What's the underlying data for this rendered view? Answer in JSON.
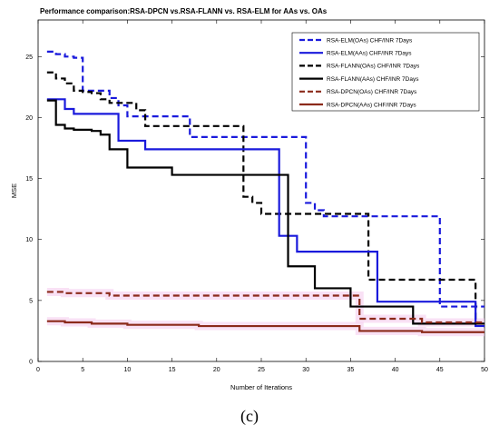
{
  "chart_data": {
    "type": "line",
    "title": "Performance comparison:RSA-DPCN vs.RSA-FLANN vs. RSA-ELM for AAs vs. OAs",
    "xlabel": "Number of Iterations",
    "ylabel": "MSE",
    "xlim": [
      0,
      50
    ],
    "ylim": [
      0,
      28
    ],
    "xticks": [
      0,
      5,
      10,
      15,
      20,
      25,
      30,
      35,
      40,
      45,
      50
    ],
    "yticks": [
      0,
      5,
      10,
      15,
      20,
      25
    ],
    "grid": false,
    "legend_position": "top-right",
    "caption": "(c)",
    "series": [
      {
        "name": "RSA-ELM(OAs) CHF/INR 7Days",
        "color": "#1a1adc",
        "style": "dashed",
        "x": [
          1,
          2,
          3,
          4,
          5,
          6,
          7,
          8,
          9,
          10,
          11,
          12,
          13,
          14,
          15,
          16,
          17,
          18,
          19,
          20,
          21,
          22,
          23,
          24,
          25,
          26,
          27,
          28,
          29,
          30,
          31,
          32,
          33,
          34,
          35,
          36,
          37,
          38,
          39,
          40,
          41,
          42,
          43,
          44,
          45,
          46,
          47,
          48,
          49,
          50
        ],
        "values": [
          25.4,
          25.2,
          25.0,
          24.9,
          22.2,
          22.2,
          22.2,
          21.6,
          21.0,
          20.1,
          20.1,
          20.1,
          20.1,
          20.1,
          20.1,
          20.1,
          18.4,
          18.4,
          18.4,
          18.4,
          18.4,
          18.4,
          18.4,
          18.4,
          18.4,
          18.4,
          18.4,
          18.4,
          18.4,
          13.0,
          12.4,
          11.9,
          11.9,
          11.9,
          11.9,
          11.9,
          11.9,
          11.9,
          11.9,
          11.9,
          11.9,
          11.9,
          11.9,
          11.9,
          4.5,
          4.5,
          4.5,
          4.5,
          4.5,
          4.5
        ]
      },
      {
        "name": "RSA-ELM(AAs) CHF/INR 7Days",
        "color": "#1a1adc",
        "style": "solid",
        "x": [
          1,
          2,
          3,
          4,
          5,
          6,
          7,
          8,
          9,
          10,
          11,
          12,
          13,
          14,
          15,
          16,
          17,
          18,
          19,
          20,
          21,
          22,
          23,
          24,
          25,
          26,
          27,
          28,
          29,
          30,
          31,
          32,
          33,
          34,
          35,
          36,
          37,
          38,
          39,
          40,
          41,
          42,
          43,
          44,
          45,
          46,
          47,
          48,
          49,
          50
        ],
        "values": [
          21.5,
          21.5,
          20.7,
          20.3,
          20.3,
          20.3,
          20.3,
          20.3,
          18.1,
          18.1,
          18.1,
          17.4,
          17.4,
          17.4,
          17.4,
          17.4,
          17.4,
          17.4,
          17.4,
          17.4,
          17.4,
          17.4,
          17.4,
          17.4,
          17.4,
          17.4,
          10.3,
          10.3,
          9.0,
          9.0,
          9.0,
          9.0,
          9.0,
          9.0,
          9.0,
          9.0,
          9.0,
          4.9,
          4.9,
          4.9,
          4.9,
          4.9,
          4.9,
          4.9,
          4.9,
          4.9,
          4.9,
          4.9,
          2.9,
          2.9
        ]
      },
      {
        "name": "RSA-FLANN(OAs) CHF/INR 7Days",
        "color": "#000000",
        "style": "dashed",
        "x": [
          1,
          2,
          3,
          4,
          5,
          6,
          7,
          8,
          9,
          10,
          11,
          12,
          13,
          14,
          15,
          16,
          17,
          18,
          19,
          20,
          21,
          22,
          23,
          24,
          25,
          26,
          27,
          28,
          29,
          30,
          31,
          32,
          33,
          34,
          35,
          36,
          37,
          38,
          39,
          40,
          41,
          42,
          43,
          44,
          45,
          46,
          47,
          48,
          49,
          50
        ],
        "values": [
          23.7,
          23.2,
          22.8,
          22.2,
          22.1,
          22.0,
          21.5,
          21.2,
          21.2,
          21.2,
          20.6,
          19.3,
          19.3,
          19.3,
          19.3,
          19.3,
          19.3,
          19.3,
          19.3,
          19.3,
          19.3,
          19.3,
          13.5,
          13.0,
          12.1,
          12.1,
          12.1,
          12.1,
          12.1,
          12.1,
          12.1,
          12.1,
          12.1,
          12.1,
          12.1,
          12.1,
          6.7,
          6.7,
          6.7,
          6.7,
          6.7,
          6.7,
          6.7,
          6.7,
          6.7,
          6.7,
          6.7,
          6.7,
          3.1,
          3.1
        ]
      },
      {
        "name": "RSA-FLANN(AAs) CHF/INR 7Days",
        "color": "#000000",
        "style": "solid",
        "x": [
          1,
          2,
          3,
          4,
          5,
          6,
          7,
          8,
          9,
          10,
          11,
          12,
          13,
          14,
          15,
          16,
          17,
          18,
          19,
          20,
          21,
          22,
          23,
          24,
          25,
          26,
          27,
          28,
          29,
          30,
          31,
          32,
          33,
          34,
          35,
          36,
          37,
          38,
          39,
          40,
          41,
          42,
          43,
          44,
          45,
          46,
          47,
          48,
          49,
          50
        ],
        "values": [
          21.4,
          19.4,
          19.1,
          19.0,
          19.0,
          18.9,
          18.6,
          17.4,
          17.4,
          15.9,
          15.9,
          15.9,
          15.9,
          15.9,
          15.3,
          15.3,
          15.3,
          15.3,
          15.3,
          15.3,
          15.3,
          15.3,
          15.3,
          15.3,
          15.3,
          15.3,
          15.3,
          7.8,
          7.8,
          7.8,
          6.0,
          6.0,
          6.0,
          6.0,
          4.5,
          4.5,
          4.5,
          4.5,
          4.5,
          4.5,
          4.5,
          3.1,
          3.1,
          3.1,
          3.1,
          3.1,
          3.1,
          3.1,
          3.1,
          3.1
        ]
      },
      {
        "name": "RSA-DPCN(OAs) CHF/INR 7Days",
        "color": "#8b2a1a",
        "style": "dashed",
        "x": [
          1,
          2,
          3,
          4,
          5,
          6,
          7,
          8,
          9,
          10,
          11,
          12,
          13,
          14,
          15,
          16,
          17,
          18,
          19,
          20,
          21,
          22,
          23,
          24,
          25,
          26,
          27,
          28,
          29,
          30,
          31,
          32,
          33,
          34,
          35,
          36,
          37,
          38,
          39,
          40,
          41,
          42,
          43,
          44,
          45,
          46,
          47,
          48,
          49,
          50
        ],
        "values": [
          5.7,
          5.7,
          5.6,
          5.6,
          5.6,
          5.6,
          5.6,
          5.4,
          5.4,
          5.4,
          5.4,
          5.4,
          5.4,
          5.4,
          5.4,
          5.4,
          5.4,
          5.4,
          5.4,
          5.4,
          5.4,
          5.4,
          5.4,
          5.4,
          5.4,
          5.4,
          5.4,
          5.4,
          5.4,
          5.4,
          5.4,
          5.4,
          5.4,
          5.4,
          5.4,
          3.5,
          3.5,
          3.5,
          3.5,
          3.5,
          3.5,
          3.5,
          3.2,
          3.2,
          3.2,
          3.2,
          3.2,
          3.2,
          3.2,
          3.2
        ]
      },
      {
        "name": "RSA-DPCN(AAs) CHF/INR 7Days",
        "color": "#8b2a1a",
        "style": "solid",
        "x": [
          1,
          2,
          3,
          4,
          5,
          6,
          7,
          8,
          9,
          10,
          11,
          12,
          13,
          14,
          15,
          16,
          17,
          18,
          19,
          20,
          21,
          22,
          23,
          24,
          25,
          26,
          27,
          28,
          29,
          30,
          31,
          32,
          33,
          34,
          35,
          36,
          37,
          38,
          39,
          40,
          41,
          42,
          43,
          44,
          45,
          46,
          47,
          48,
          49,
          50
        ],
        "values": [
          3.3,
          3.3,
          3.2,
          3.2,
          3.2,
          3.1,
          3.1,
          3.1,
          3.1,
          3.0,
          3.0,
          3.0,
          3.0,
          3.0,
          3.0,
          3.0,
          3.0,
          2.9,
          2.9,
          2.9,
          2.9,
          2.9,
          2.9,
          2.9,
          2.9,
          2.9,
          2.9,
          2.9,
          2.9,
          2.9,
          2.9,
          2.9,
          2.9,
          2.9,
          2.9,
          2.5,
          2.5,
          2.5,
          2.5,
          2.5,
          2.5,
          2.5,
          2.4,
          2.4,
          2.4,
          2.4,
          2.4,
          2.4,
          2.4,
          2.4
        ]
      }
    ]
  }
}
